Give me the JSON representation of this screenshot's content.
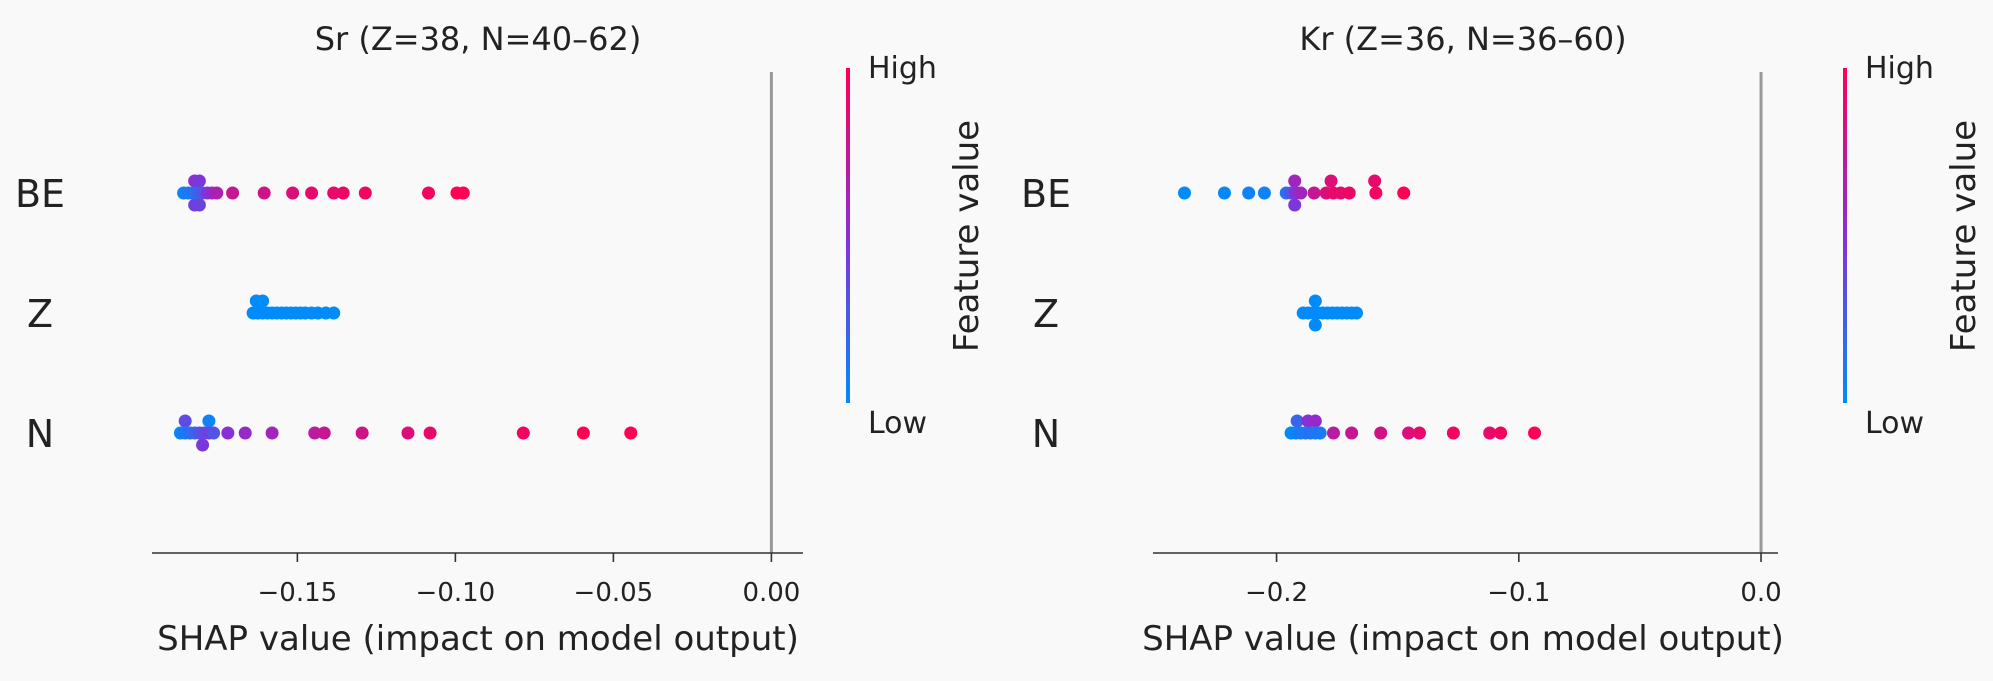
{
  "colors": {
    "background": "#f9f9f9",
    "high": "#ff0052",
    "low": "#008bfb",
    "zero_line": "#999999",
    "axis": "#333333",
    "text": "#222222"
  },
  "chart_data": [
    {
      "type": "scatter",
      "subtype": "shap_beeswarm",
      "title": "Sr (Z=38, N=40–62)",
      "xlabel": "SHAP value (impact on model output)",
      "xlim": [
        -0.196,
        0.01
      ],
      "xticks": [
        -0.15,
        -0.1,
        -0.05,
        0.0
      ],
      "xtick_labels": [
        "−0.15",
        "−0.10",
        "−0.05",
        "0.00"
      ],
      "features": [
        "BE",
        "Z",
        "N"
      ],
      "colorbar": {
        "label": "Feature value",
        "high": "High",
        "low": "Low"
      },
      "points": {
        "BE": [
          {
            "x": -0.1825,
            "dy": 1,
            "c": 0.5
          },
          {
            "x": -0.181,
            "dy": 1,
            "c": 0.45
          },
          {
            "x": -0.1825,
            "dy": -1,
            "c": 0.4
          },
          {
            "x": -0.181,
            "dy": -1,
            "c": 0.4
          },
          {
            "x": -0.186,
            "dy": 0,
            "c": 0.05
          },
          {
            "x": -0.1845,
            "dy": 0,
            "c": 0.1
          },
          {
            "x": -0.183,
            "dy": 0,
            "c": 0.15
          },
          {
            "x": -0.1815,
            "dy": 0,
            "c": 0.2
          },
          {
            "x": -0.18,
            "dy": 0,
            "c": 0.3
          },
          {
            "x": -0.1785,
            "dy": 0,
            "c": 0.45
          },
          {
            "x": -0.177,
            "dy": 0,
            "c": 0.55
          },
          {
            "x": -0.1755,
            "dy": 0,
            "c": 0.65
          },
          {
            "x": -0.1705,
            "dy": 0,
            "c": 0.75
          },
          {
            "x": -0.1605,
            "dy": 0,
            "c": 0.8
          },
          {
            "x": -0.1515,
            "dy": 0,
            "c": 0.85
          },
          {
            "x": -0.1455,
            "dy": 0,
            "c": 0.9
          },
          {
            "x": -0.1385,
            "dy": 0,
            "c": 0.9
          },
          {
            "x": -0.1355,
            "dy": 0,
            "c": 0.92
          },
          {
            "x": -0.1285,
            "dy": 0,
            "c": 0.95
          },
          {
            "x": -0.1085,
            "dy": 0,
            "c": 0.95
          },
          {
            "x": -0.0995,
            "dy": 0,
            "c": 1.0
          },
          {
            "x": -0.0975,
            "dy": 0,
            "c": 1.0
          }
        ],
        "Z": [
          {
            "x": -0.163,
            "dy": 1,
            "c": 0.0
          },
          {
            "x": -0.161,
            "dy": 1,
            "c": 0.0
          },
          {
            "x": -0.164,
            "dy": 0,
            "c": 0.0
          },
          {
            "x": -0.1625,
            "dy": 0,
            "c": 0.0
          },
          {
            "x": -0.161,
            "dy": 0,
            "c": 0.0
          },
          {
            "x": -0.1595,
            "dy": 0,
            "c": 0.0
          },
          {
            "x": -0.158,
            "dy": 0,
            "c": 0.0
          },
          {
            "x": -0.1565,
            "dy": 0,
            "c": 0.0
          },
          {
            "x": -0.155,
            "dy": 0,
            "c": 0.0
          },
          {
            "x": -0.1535,
            "dy": 0,
            "c": 0.0
          },
          {
            "x": -0.152,
            "dy": 0,
            "c": 0.0
          },
          {
            "x": -0.1505,
            "dy": 0,
            "c": 0.0
          },
          {
            "x": -0.149,
            "dy": 0,
            "c": 0.0
          },
          {
            "x": -0.1475,
            "dy": 0,
            "c": 0.0
          },
          {
            "x": -0.1455,
            "dy": 0,
            "c": 0.0
          },
          {
            "x": -0.1435,
            "dy": 0,
            "c": 0.0
          },
          {
            "x": -0.141,
            "dy": 0,
            "c": 0.0
          },
          {
            "x": -0.1385,
            "dy": 0,
            "c": 0.0
          }
        ],
        "N": [
          {
            "x": -0.1855,
            "dy": 1,
            "c": 0.35
          },
          {
            "x": -0.178,
            "dy": 1,
            "c": 0.05
          },
          {
            "x": -0.187,
            "dy": 0,
            "c": 0.05
          },
          {
            "x": -0.1855,
            "dy": 0,
            "c": 0.1
          },
          {
            "x": -0.184,
            "dy": 0,
            "c": 0.15
          },
          {
            "x": -0.1825,
            "dy": 0,
            "c": 0.2
          },
          {
            "x": -0.181,
            "dy": 0,
            "c": 0.3
          },
          {
            "x": -0.1795,
            "dy": 0,
            "c": 0.35
          },
          {
            "x": -0.178,
            "dy": 0,
            "c": 0.4
          },
          {
            "x": -0.1765,
            "dy": 0,
            "c": 0.3
          },
          {
            "x": -0.172,
            "dy": 0,
            "c": 0.5
          },
          {
            "x": -0.1665,
            "dy": 0,
            "c": 0.55
          },
          {
            "x": -0.158,
            "dy": 0,
            "c": 0.6
          },
          {
            "x": -0.1445,
            "dy": 0,
            "c": 0.7
          },
          {
            "x": -0.1415,
            "dy": 0,
            "c": 0.75
          },
          {
            "x": -0.1295,
            "dy": 0,
            "c": 0.8
          },
          {
            "x": -0.115,
            "dy": 0,
            "c": 0.85
          },
          {
            "x": -0.108,
            "dy": 0,
            "c": 0.9
          },
          {
            "x": -0.0785,
            "dy": 0,
            "c": 0.95
          },
          {
            "x": -0.0595,
            "dy": 0,
            "c": 1.0
          },
          {
            "x": -0.0445,
            "dy": 0,
            "c": 1.0
          },
          {
            "x": -0.18,
            "dy": -1,
            "c": 0.45
          }
        ]
      }
    },
    {
      "type": "scatter",
      "subtype": "shap_beeswarm",
      "title": "Kr (Z=36, N=36–60)",
      "xlabel": "SHAP value (impact on model output)",
      "xlim": [
        -0.251,
        0.007
      ],
      "xticks": [
        -0.2,
        -0.1,
        0.0
      ],
      "xtick_labels": [
        "−0.2",
        "−0.1",
        "0.0"
      ],
      "features": [
        "BE",
        "Z",
        "N"
      ],
      "colorbar": {
        "label": "Feature value",
        "high": "High",
        "low": "Low"
      },
      "points": {
        "BE": [
          {
            "x": -0.1925,
            "dy": 1,
            "c": 0.6
          },
          {
            "x": -0.1775,
            "dy": 1,
            "c": 0.85
          },
          {
            "x": -0.1595,
            "dy": 1,
            "c": 0.9
          },
          {
            "x": -0.1925,
            "dy": -1,
            "c": 0.45
          },
          {
            "x": -0.238,
            "dy": 0,
            "c": 0.0
          },
          {
            "x": -0.2215,
            "dy": 0,
            "c": 0.02
          },
          {
            "x": -0.2115,
            "dy": 0,
            "c": 0.05
          },
          {
            "x": -0.205,
            "dy": 0,
            "c": 0.05
          },
          {
            "x": -0.196,
            "dy": 0,
            "c": 0.15
          },
          {
            "x": -0.194,
            "dy": 0,
            "c": 0.3
          },
          {
            "x": -0.192,
            "dy": 0,
            "c": 0.5
          },
          {
            "x": -0.19,
            "dy": 0,
            "c": 0.6
          },
          {
            "x": -0.1845,
            "dy": 0,
            "c": 0.75
          },
          {
            "x": -0.1795,
            "dy": 0,
            "c": 0.85
          },
          {
            "x": -0.1765,
            "dy": 0,
            "c": 0.9
          },
          {
            "x": -0.1735,
            "dy": 0,
            "c": 0.9
          },
          {
            "x": -0.17,
            "dy": 0,
            "c": 0.92
          },
          {
            "x": -0.159,
            "dy": 0,
            "c": 0.95
          },
          {
            "x": -0.1475,
            "dy": 0,
            "c": 1.0
          }
        ],
        "Z": [
          {
            "x": -0.184,
            "dy": 1,
            "c": 0.0
          },
          {
            "x": -0.184,
            "dy": -1,
            "c": 0.0
          },
          {
            "x": -0.189,
            "dy": 0,
            "c": 0.0
          },
          {
            "x": -0.187,
            "dy": 0,
            "c": 0.0
          },
          {
            "x": -0.185,
            "dy": 0,
            "c": 0.0
          },
          {
            "x": -0.183,
            "dy": 0,
            "c": 0.0
          },
          {
            "x": -0.181,
            "dy": 0,
            "c": 0.0
          },
          {
            "x": -0.179,
            "dy": 0,
            "c": 0.0
          },
          {
            "x": -0.177,
            "dy": 0,
            "c": 0.0
          },
          {
            "x": -0.175,
            "dy": 0,
            "c": 0.0
          },
          {
            "x": -0.173,
            "dy": 0,
            "c": 0.0
          },
          {
            "x": -0.171,
            "dy": 0,
            "c": 0.0
          },
          {
            "x": -0.169,
            "dy": 0,
            "c": 0.0
          },
          {
            "x": -0.167,
            "dy": 0,
            "c": 0.0
          }
        ],
        "N": [
          {
            "x": -0.1915,
            "dy": 1,
            "c": 0.2
          },
          {
            "x": -0.187,
            "dy": 1,
            "c": 0.5
          },
          {
            "x": -0.184,
            "dy": 1,
            "c": 0.55
          },
          {
            "x": -0.194,
            "dy": 0,
            "c": 0.0
          },
          {
            "x": -0.192,
            "dy": 0,
            "c": 0.05
          },
          {
            "x": -0.19,
            "dy": 0,
            "c": 0.1
          },
          {
            "x": -0.188,
            "dy": 0,
            "c": 0.1
          },
          {
            "x": -0.186,
            "dy": 0,
            "c": 0.15
          },
          {
            "x": -0.184,
            "dy": 0,
            "c": 0.1
          },
          {
            "x": -0.182,
            "dy": 0,
            "c": 0.1
          },
          {
            "x": -0.1765,
            "dy": 0,
            "c": 0.7
          },
          {
            "x": -0.169,
            "dy": 0,
            "c": 0.75
          },
          {
            "x": -0.157,
            "dy": 0,
            "c": 0.8
          },
          {
            "x": -0.1455,
            "dy": 0,
            "c": 0.85
          },
          {
            "x": -0.141,
            "dy": 0,
            "c": 0.9
          },
          {
            "x": -0.127,
            "dy": 0,
            "c": 0.95
          },
          {
            "x": -0.112,
            "dy": 0,
            "c": 0.9
          },
          {
            "x": -0.1075,
            "dy": 0,
            "c": 0.95
          },
          {
            "x": -0.0935,
            "dy": 0,
            "c": 1.0
          }
        ]
      }
    }
  ]
}
